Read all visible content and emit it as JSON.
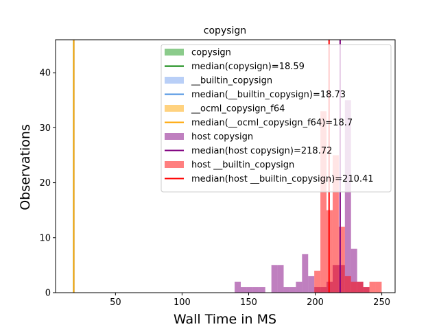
{
  "chart_data": {
    "type": "histogram",
    "title": "copysign",
    "xlabel": "Wall Time in MS",
    "ylabel": "Observations",
    "xlim": [
      5,
      260
    ],
    "ylim": [
      0,
      46
    ],
    "x_ticks": [
      50,
      100,
      150,
      200,
      250
    ],
    "y_ticks": [
      0,
      10,
      20,
      30,
      40
    ],
    "legend_position": "upper right",
    "bin_width": 4.6,
    "series": [
      {
        "name": "copysign",
        "color": "#2ca02c",
        "opacity": 0.55,
        "bins": []
      },
      {
        "name": "__builtin_copysign",
        "color": "#6495ed",
        "opacity": 0.45,
        "bins": []
      },
      {
        "name": "__ocml_copysign_f64",
        "color": "#ffa500",
        "opacity": 0.5,
        "bins": []
      },
      {
        "name": "host copysign",
        "color": "#800080",
        "opacity": 0.5,
        "bins": [
          {
            "x": 139.5,
            "count": 2
          },
          {
            "x": 144.1,
            "count": 1
          },
          {
            "x": 148.7,
            "count": 1
          },
          {
            "x": 153.3,
            "count": 1
          },
          {
            "x": 157.9,
            "count": 1
          },
          {
            "x": 167.1,
            "count": 5
          },
          {
            "x": 171.7,
            "count": 5
          },
          {
            "x": 176.3,
            "count": 1
          },
          {
            "x": 180.9,
            "count": 1
          },
          {
            "x": 185.5,
            "count": 2
          },
          {
            "x": 190.1,
            "count": 7
          },
          {
            "x": 194.7,
            "count": 3
          },
          {
            "x": 199.3,
            "count": 1
          },
          {
            "x": 203.9,
            "count": 1
          },
          {
            "x": 208.5,
            "count": 2
          },
          {
            "x": 213.1,
            "count": 5
          },
          {
            "x": 217.7,
            "count": 5
          },
          {
            "x": 222.3,
            "count": 35
          },
          {
            "x": 226.9,
            "count": 8
          },
          {
            "x": 231.5,
            "count": 2
          },
          {
            "x": 236.1,
            "count": 1
          }
        ]
      },
      {
        "name": "host __builtin_copysign",
        "color": "#ff0000",
        "opacity": 0.5,
        "bins": [
          {
            "x": 199.3,
            "count": 4
          },
          {
            "x": 203.9,
            "count": 33
          },
          {
            "x": 208.5,
            "count": 15
          },
          {
            "x": 213.1,
            "count": 25
          },
          {
            "x": 217.7,
            "count": 12
          },
          {
            "x": 222.3,
            "count": 3
          },
          {
            "x": 226.9,
            "count": 2
          },
          {
            "x": 231.5,
            "count": 2
          },
          {
            "x": 236.1,
            "count": 1
          },
          {
            "x": 240.7,
            "count": 2
          },
          {
            "x": 245.3,
            "count": 2
          }
        ]
      }
    ],
    "medians": [
      {
        "name": "median(copysign)=18.59",
        "value": 18.59,
        "color": "#008000"
      },
      {
        "name": "median(__builtin_copysign)=18.73",
        "value": 18.73,
        "color": "#4a90e2"
      },
      {
        "name": "median(__ocml_copysign_f64)=18.7",
        "value": 18.7,
        "color": "#ffa500"
      },
      {
        "name": "median(host copysign)=218.72",
        "value": 218.72,
        "color": "#800080"
      },
      {
        "name": "median(host __builtin_copysign)=210.41",
        "value": 210.41,
        "color": "#ff0000"
      }
    ],
    "legend": [
      {
        "kind": "patch",
        "label": " copysign",
        "color": "#2ca02c",
        "opacity": 0.55
      },
      {
        "kind": "line",
        "label": " median(copysign)=18.59",
        "color": "#008000"
      },
      {
        "kind": "patch",
        "label": " __builtin_copysign",
        "color": "#6495ed",
        "opacity": 0.45
      },
      {
        "kind": "line",
        "label": " median(__builtin_copysign)=18.73",
        "color": "#4a90e2"
      },
      {
        "kind": "patch",
        "label": " __ocml_copysign_f64",
        "color": "#ffa500",
        "opacity": 0.5
      },
      {
        "kind": "line",
        "label": " median(__ocml_copysign_f64)=18.7",
        "color": "#ffa500"
      },
      {
        "kind": "patch",
        "label": "host copysign",
        "color": "#800080",
        "opacity": 0.5
      },
      {
        "kind": "line",
        "label": "median(host copysign)=218.72",
        "color": "#800080"
      },
      {
        "kind": "patch",
        "label": "host __builtin_copysign",
        "color": "#ff0000",
        "opacity": 0.5
      },
      {
        "kind": "line",
        "label": "median(host __builtin_copysign)=210.41",
        "color": "#ff0000"
      }
    ]
  }
}
